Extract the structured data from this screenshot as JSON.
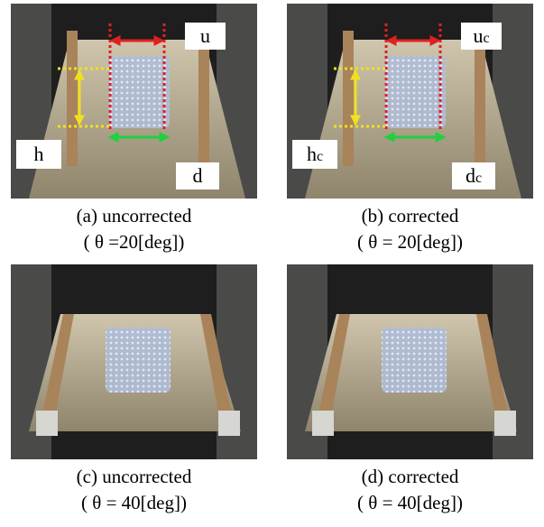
{
  "panels": [
    {
      "caption": [
        "(a) uncorrected",
        "( θ =20[deg])"
      ],
      "labels": [
        {
          "text": "u"
        },
        {
          "text": "h"
        },
        {
          "text": "d"
        }
      ]
    },
    {
      "caption": [
        "(b) corrected",
        "( θ = 20[deg])"
      ],
      "labels": [
        {
          "text": "u",
          "sub": "c"
        },
        {
          "text": "h",
          "sub": "c"
        },
        {
          "text": "d",
          "sub": "c"
        }
      ]
    },
    {
      "caption": [
        "(c) uncorrected",
        "( θ  = 40[deg])"
      ]
    },
    {
      "caption": [
        "(d) corrected",
        "( θ  = 40[deg])"
      ]
    }
  ]
}
